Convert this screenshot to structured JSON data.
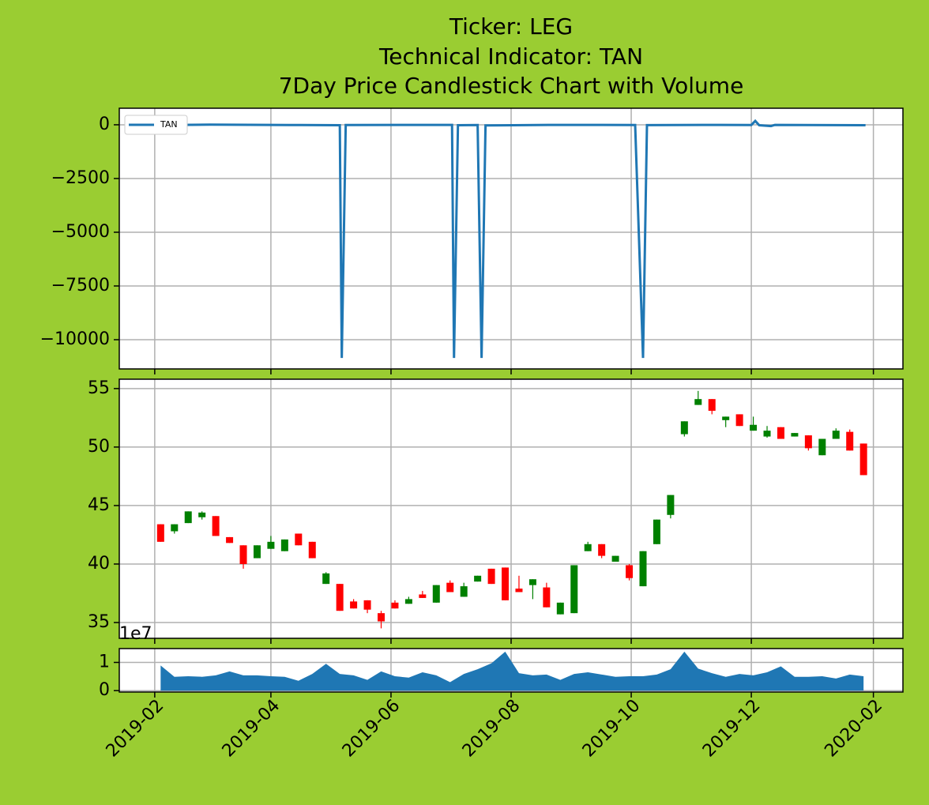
{
  "chart_data": [
    {
      "type": "line",
      "title": [
        "Ticker: LEG",
        "Technical Indicator: TAN",
        "7Day Price Candlestick Chart with Volume"
      ],
      "ylim": [
        -11360,
        770
      ],
      "yticks": [
        0,
        {
          "value": -2500,
          "label": "−2500"
        },
        {
          "value": -5000,
          "label": "−5000"
        },
        {
          "value": -7500,
          "label": "−7500"
        },
        {
          "value": -10000,
          "label": "−10000"
        }
      ],
      "grid": true,
      "legend": "upper left",
      "x": [
        "2019-02-04",
        "2019-03-01",
        "2019-04-10",
        "2019-05-06",
        "2019-05-07",
        "2019-05-09",
        "2019-07-02",
        "2019-07-03",
        "2019-07-05",
        "2019-07-15",
        "2019-07-17",
        "2019-07-19",
        "2019-08-20",
        "2019-10-03",
        "2019-10-07",
        "2019-10-09",
        "2019-11-15",
        "2019-12-01",
        "2019-12-03",
        "2019-12-05",
        "2019-12-11",
        "2019-12-13",
        "2020-01-28"
      ],
      "series": [
        {
          "name": "TAN",
          "color": "#1f77b4",
          "values": [
            -15,
            5,
            -10,
            -20,
            -10850,
            -10,
            -5,
            -10850,
            -20,
            -10,
            -10850,
            -30,
            -5,
            -10,
            -10850,
            -15,
            -5,
            -10,
            180,
            -20,
            -60,
            -5,
            -20
          ]
        }
      ]
    },
    {
      "type": "candlestick",
      "ylim": [
        33.65,
        55.8
      ],
      "yticks": [
        35,
        40,
        45,
        50,
        55
      ],
      "grid": true,
      "up_color": "green",
      "down_color": "red",
      "x": [
        "2019-02-04",
        "2019-02-11",
        "2019-02-18",
        "2019-02-25",
        "2019-03-04",
        "2019-03-11",
        "2019-03-18",
        "2019-03-25",
        "2019-04-01",
        "2019-04-08",
        "2019-04-15",
        "2019-04-22",
        "2019-04-29",
        "2019-05-06",
        "2019-05-13",
        "2019-05-20",
        "2019-05-27",
        "2019-06-03",
        "2019-06-10",
        "2019-06-17",
        "2019-06-24",
        "2019-07-01",
        "2019-07-08",
        "2019-07-15",
        "2019-07-22",
        "2019-07-29",
        "2019-08-05",
        "2019-08-12",
        "2019-08-19",
        "2019-08-26",
        "2019-09-02",
        "2019-09-09",
        "2019-09-16",
        "2019-09-23",
        "2019-09-30",
        "2019-10-07",
        "2019-10-14",
        "2019-10-21",
        "2019-10-28",
        "2019-11-04",
        "2019-11-11",
        "2019-11-18",
        "2019-11-25",
        "2019-12-02",
        "2019-12-09",
        "2019-12-16",
        "2019-12-23",
        "2019-12-30",
        "2020-01-06",
        "2020-01-13",
        "2020-01-20",
        "2020-01-27"
      ],
      "open": [
        43.4,
        42.8,
        43.5,
        44.0,
        44.1,
        42.3,
        41.6,
        40.5,
        41.3,
        41.1,
        42.6,
        41.9,
        38.3,
        38.3,
        36.8,
        36.9,
        35.8,
        36.7,
        36.6,
        37.4,
        36.7,
        38.4,
        37.2,
        38.5,
        39.6,
        39.7,
        37.9,
        38.2,
        38.0,
        35.7,
        35.8,
        41.1,
        41.7,
        40.2,
        39.9,
        38.1,
        41.7,
        44.2,
        51.1,
        53.6,
        54.1,
        52.3,
        52.8,
        51.4,
        50.9,
        51.7,
        50.9,
        51.0,
        49.3,
        50.7,
        51.3,
        50.3
      ],
      "high": [
        43.4,
        43.4,
        44.5,
        44.5,
        44.1,
        42.3,
        41.6,
        41.6,
        42.4,
        42.1,
        42.6,
        41.9,
        39.3,
        38.3,
        37.0,
        36.9,
        36.0,
        36.9,
        37.2,
        37.7,
        38.2,
        38.6,
        38.4,
        39.0,
        39.6,
        39.7,
        39.0,
        38.7,
        38.4,
        36.7,
        39.9,
        41.9,
        41.7,
        40.7,
        40.0,
        41.1,
        43.8,
        45.9,
        52.2,
        54.8,
        54.1,
        52.6,
        52.8,
        52.6,
        51.8,
        51.7,
        51.2,
        51.0,
        50.7,
        51.6,
        51.5,
        50.3
      ],
      "low": [
        41.9,
        42.6,
        43.5,
        43.8,
        42.4,
        41.8,
        39.6,
        40.5,
        41.3,
        41.1,
        41.6,
        40.5,
        38.3,
        36.0,
        36.2,
        35.8,
        34.5,
        36.2,
        36.6,
        37.1,
        36.7,
        37.6,
        37.2,
        38.5,
        38.3,
        36.9,
        37.6,
        37.0,
        36.3,
        35.7,
        35.8,
        41.1,
        40.5,
        40.2,
        38.6,
        38.1,
        41.7,
        43.9,
        50.9,
        53.6,
        52.8,
        51.7,
        51.8,
        51.4,
        50.8,
        50.7,
        50.9,
        49.7,
        49.3,
        50.7,
        49.7,
        47.6
      ],
      "close": [
        41.9,
        43.4,
        44.5,
        44.4,
        42.4,
        41.8,
        40.0,
        41.6,
        41.9,
        42.1,
        41.6,
        40.5,
        39.2,
        36.0,
        36.2,
        36.1,
        35.1,
        36.2,
        37.0,
        37.1,
        38.2,
        37.6,
        38.1,
        39.0,
        38.3,
        36.9,
        37.6,
        38.7,
        36.3,
        36.7,
        39.9,
        41.7,
        40.7,
        40.7,
        38.8,
        41.1,
        43.8,
        45.9,
        52.2,
        54.1,
        53.1,
        52.6,
        51.8,
        51.9,
        51.4,
        50.7,
        51.2,
        49.9,
        50.7,
        51.4,
        49.7,
        47.6
      ]
    },
    {
      "type": "area",
      "ylim": [
        -500000,
        14900000
      ],
      "yticks": [
        0,
        {
          "value": 10000000,
          "label": "1"
        }
      ],
      "y_offset_label": "1e7",
      "grid": true,
      "color": "#1f77b4",
      "xlim": [
        "2019-01-14",
        "2020-02-16"
      ],
      "xticks": [
        {
          "value": "2019-02-01",
          "label": "2019-02"
        },
        {
          "value": "2019-04-01",
          "label": "2019-04"
        },
        {
          "value": "2019-06-01",
          "label": "2019-06"
        },
        {
          "value": "2019-08-01",
          "label": "2019-08"
        },
        {
          "value": "2019-10-01",
          "label": "2019-10"
        },
        {
          "value": "2019-12-01",
          "label": "2019-12"
        },
        {
          "value": "2020-02-01",
          "label": "2020-02"
        }
      ],
      "x": [
        "2019-02-04",
        "2019-02-11",
        "2019-02-18",
        "2019-02-25",
        "2019-03-04",
        "2019-03-11",
        "2019-03-18",
        "2019-03-25",
        "2019-04-01",
        "2019-04-08",
        "2019-04-15",
        "2019-04-22",
        "2019-04-29",
        "2019-05-06",
        "2019-05-13",
        "2019-05-20",
        "2019-05-27",
        "2019-06-03",
        "2019-06-10",
        "2019-06-17",
        "2019-06-24",
        "2019-07-01",
        "2019-07-08",
        "2019-07-15",
        "2019-07-22",
        "2019-07-29",
        "2019-08-05",
        "2019-08-12",
        "2019-08-19",
        "2019-08-26",
        "2019-09-02",
        "2019-09-09",
        "2019-09-16",
        "2019-09-23",
        "2019-09-30",
        "2019-10-07",
        "2019-10-14",
        "2019-10-21",
        "2019-10-28",
        "2019-11-04",
        "2019-11-11",
        "2019-11-18",
        "2019-11-25",
        "2019-12-02",
        "2019-12-09",
        "2019-12-16",
        "2019-12-23",
        "2019-12-30",
        "2020-01-06",
        "2020-01-13",
        "2020-01-20",
        "2020-01-27"
      ],
      "values": [
        8900000,
        4900000,
        5100000,
        4900000,
        5400000,
        6800000,
        5400000,
        5400000,
        5100000,
        4900000,
        3500000,
        5900000,
        9500000,
        5900000,
        5400000,
        3800000,
        6800000,
        5100000,
        4600000,
        6500000,
        5400000,
        3000000,
        5900000,
        7600000,
        9700000,
        13800000,
        6200000,
        5400000,
        5700000,
        3800000,
        5900000,
        6500000,
        5700000,
        4900000,
        5100000,
        5100000,
        5700000,
        7600000,
        13800000,
        7800000,
        6200000,
        4900000,
        5900000,
        5400000,
        6500000,
        8600000,
        4900000,
        4900000,
        5100000,
        4300000,
        5700000,
        5100000
      ]
    }
  ]
}
